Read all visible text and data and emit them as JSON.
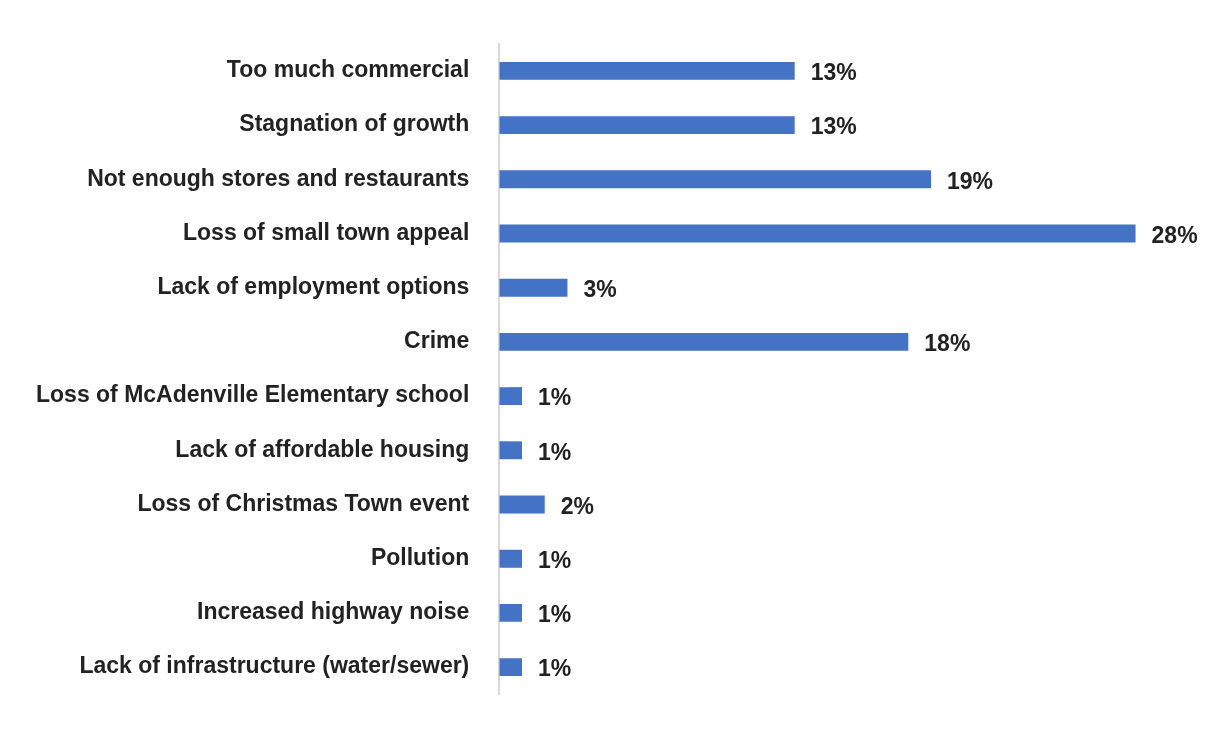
{
  "chart_data": {
    "type": "bar",
    "orientation": "horizontal",
    "tick_labels": "y",
    "color": "#4472c4",
    "categories": [
      "Too much commercial",
      "Stagnation of growth",
      "Not enough stores and restaurants",
      "Loss of small town appeal",
      "Lack of employment options",
      "Crime",
      "Loss of McAdenville Elementary school",
      "Lack of affordable housing",
      "Loss of Christmas Town event",
      "Pollution",
      "Increased highway noise",
      "Lack of infrastructure (water/sewer)"
    ],
    "values": [
      13,
      13,
      19,
      28,
      3,
      18,
      1,
      1,
      2,
      1,
      1,
      1
    ],
    "value_labels": [
      "13%",
      "13%",
      "19%",
      "28%",
      "3%",
      "18%",
      "1%",
      "1%",
      "2%",
      "1%",
      "1%",
      "1%"
    ]
  }
}
